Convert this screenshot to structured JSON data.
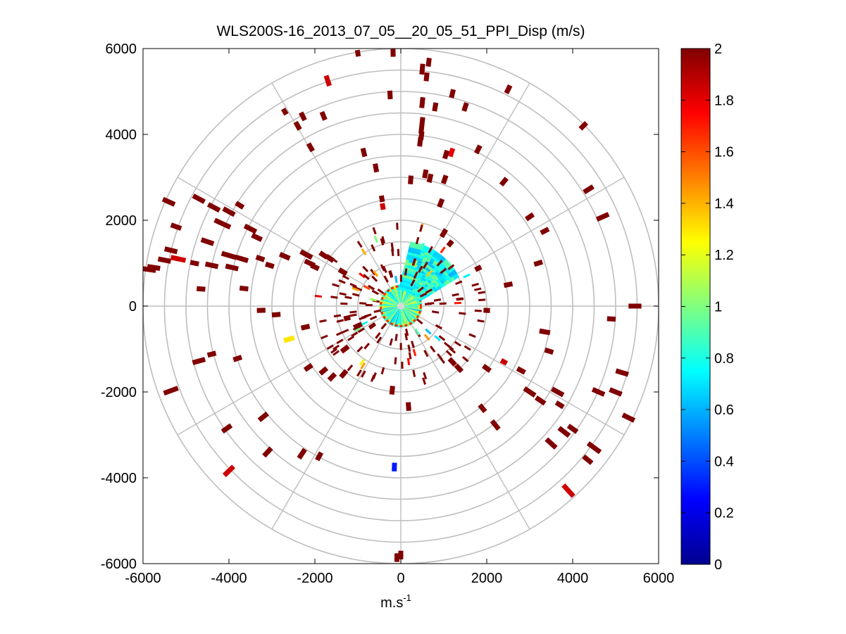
{
  "chart_data": {
    "type": "heatmap",
    "subtype": "polar-ppi-scan",
    "title": "WLS200S-16_2013_07_05__20_05_51_PPI_Disp (m/s)",
    "xlabel": "m.s",
    "xlabel_superscript": "-1",
    "ylabel": "",
    "xlim": [
      -6000,
      6000
    ],
    "ylim": [
      -6000,
      6000
    ],
    "xticks": [
      -6000,
      -4000,
      -2000,
      0,
      2000,
      4000,
      6000
    ],
    "yticks": [
      -6000,
      -4000,
      -2000,
      0,
      2000,
      4000,
      6000
    ],
    "polar_grid": {
      "rings": [
        1000,
        1500,
        2000,
        2500,
        3000,
        3500,
        4000,
        4500,
        5000,
        5500,
        6000
      ],
      "spokes_deg": [
        0,
        30,
        60,
        90,
        120,
        150,
        180,
        210,
        240,
        270,
        300,
        330
      ],
      "color": "#bebebe"
    },
    "colorbar": {
      "min": 0,
      "max": 2,
      "ticks": [
        0,
        0.2,
        0.4,
        0.6,
        0.8,
        1,
        1.2,
        1.4,
        1.6,
        1.8,
        2
      ],
      "colormap": "jet",
      "stops": [
        "#00008f",
        "#0000ff",
        "#0080ff",
        "#00ffff",
        "#80ff80",
        "#ffff00",
        "#ff8000",
        "#ff0000",
        "#800000"
      ]
    },
    "near_field_region": {
      "center": [
        0,
        0
      ],
      "radius": 500,
      "value_range": [
        0.6,
        1.2
      ]
    },
    "echo_region": {
      "az_from": 30,
      "az_to": 75,
      "r_from": 400,
      "r_to": 1450,
      "value_range": [
        0.6,
        1.0
      ]
    },
    "segments": [
      [
        -1000,
        5890,
        150,
        2
      ],
      [
        -180,
        5900,
        180,
        2
      ],
      [
        650,
        5680,
        200,
        2
      ],
      [
        500,
        5520,
        250,
        2
      ],
      [
        600,
        5340,
        200,
        2
      ],
      [
        1200,
        4950,
        200,
        2
      ],
      [
        2500,
        5050,
        200,
        2
      ],
      [
        4250,
        4200,
        200,
        2
      ],
      [
        -1700,
        5250,
        250,
        1.85
      ],
      [
        -250,
        4920,
        200,
        2
      ],
      [
        500,
        4740,
        250,
        2
      ],
      [
        800,
        4640,
        200,
        2
      ],
      [
        1500,
        4640,
        200,
        2
      ],
      [
        -2700,
        4530,
        150,
        2
      ],
      [
        -2280,
        4420,
        200,
        2
      ],
      [
        -1800,
        4430,
        200,
        2
      ],
      [
        -2400,
        4200,
        200,
        2
      ],
      [
        500,
        4300,
        200,
        2
      ],
      [
        480,
        4120,
        200,
        2
      ],
      [
        480,
        3970,
        200,
        2
      ],
      [
        450,
        3830,
        220,
        2
      ],
      [
        -2100,
        3700,
        200,
        2
      ],
      [
        -860,
        3580,
        200,
        2
      ],
      [
        1800,
        3650,
        200,
        2
      ],
      [
        -580,
        3220,
        200,
        2
      ],
      [
        1180,
        3580,
        200,
        1.8
      ],
      [
        1050,
        3530,
        200,
        2
      ],
      [
        570,
        3080,
        200,
        2
      ],
      [
        230,
        2940,
        200,
        2
      ],
      [
        680,
        2980,
        200,
        2
      ],
      [
        1020,
        2950,
        200,
        2
      ],
      [
        2400,
        2900,
        200,
        2
      ],
      [
        4370,
        2720,
        250,
        2
      ],
      [
        -440,
        2500,
        150,
        2
      ],
      [
        -420,
        2320,
        150,
        1.85
      ],
      [
        930,
        2400,
        200,
        2
      ],
      [
        -5400,
        2430,
        300,
        2
      ],
      [
        -4700,
        2500,
        300,
        2
      ],
      [
        -4350,
        2300,
        300,
        2
      ],
      [
        -4000,
        2200,
        300,
        2
      ],
      [
        -3750,
        2350,
        200,
        2
      ],
      [
        -4150,
        1920,
        400,
        2
      ],
      [
        -3500,
        1800,
        300,
        2
      ],
      [
        -3350,
        1600,
        250,
        2
      ],
      [
        -5230,
        1850,
        250,
        2
      ],
      [
        -5350,
        1300,
        300,
        2
      ],
      [
        -5500,
        1070,
        300,
        2
      ],
      [
        -5750,
        900,
        300,
        2
      ],
      [
        -5850,
        850,
        300,
        2
      ],
      [
        -5180,
        1100,
        350,
        1.85
      ],
      [
        -4500,
        1500,
        300,
        2
      ],
      [
        -4000,
        1180,
        350,
        2
      ],
      [
        -3700,
        1100,
        300,
        2
      ],
      [
        -4400,
        950,
        300,
        2
      ],
      [
        -3930,
        900,
        300,
        2
      ],
      [
        -4800,
        1000,
        200,
        2
      ],
      [
        -3270,
        1110,
        200,
        2
      ],
      [
        -3050,
        950,
        200,
        2
      ],
      [
        -2700,
        1160,
        250,
        2
      ],
      [
        -2200,
        1200,
        300,
        2
      ],
      [
        -2120,
        1000,
        250,
        2
      ],
      [
        -2000,
        910,
        200,
        2
      ],
      [
        -1800,
        1190,
        200,
        2
      ],
      [
        -1650,
        1110,
        200,
        2
      ],
      [
        -1350,
        800,
        200,
        2
      ],
      [
        -4650,
        400,
        200,
        2
      ],
      [
        -3650,
        410,
        200,
        2
      ],
      [
        -3250,
        -100,
        200,
        2
      ],
      [
        -2900,
        -200,
        200,
        2
      ],
      [
        -2600,
        -770,
        250,
        1.3
      ],
      [
        -2220,
        -490,
        200,
        2
      ],
      [
        -1250,
        -280,
        150,
        2
      ],
      [
        -1000,
        -460,
        200,
        2
      ],
      [
        -1600,
        -1650,
        200,
        2
      ],
      [
        -1330,
        -1580,
        200,
        2
      ],
      [
        -1800,
        -1510,
        200,
        2
      ],
      [
        -2150,
        -1430,
        200,
        2
      ],
      [
        -3800,
        -1220,
        200,
        2
      ],
      [
        -4700,
        -1280,
        300,
        2
      ],
      [
        -4400,
        -1120,
        200,
        2
      ],
      [
        -5350,
        -1970,
        350,
        2
      ],
      [
        -4050,
        -2850,
        250,
        2
      ],
      [
        -3200,
        -2580,
        250,
        2
      ],
      [
        -3100,
        -3400,
        250,
        2
      ],
      [
        -2300,
        -3440,
        250,
        2
      ],
      [
        -1900,
        -3500,
        200,
        2
      ],
      [
        -4000,
        -3840,
        300,
        1.85
      ],
      [
        -1300,
        -1000,
        200,
        2
      ],
      [
        -150,
        -3750,
        200,
        0.3
      ],
      [
        180,
        -2340,
        200,
        2
      ],
      [
        -200,
        -1960,
        200,
        2
      ],
      [
        1350,
        -1450,
        200,
        2
      ],
      [
        1200,
        -1300,
        200,
        2
      ],
      [
        2400,
        -1300,
        150,
        1.85
      ],
      [
        2000,
        -1450,
        200,
        2
      ],
      [
        2800,
        -1500,
        200,
        2
      ],
      [
        1900,
        -2380,
        200,
        2
      ],
      [
        2200,
        -2770,
        250,
        2
      ],
      [
        3000,
        -2000,
        300,
        2
      ],
      [
        3250,
        -2200,
        250,
        2
      ],
      [
        3650,
        -2000,
        300,
        2
      ],
      [
        3700,
        -2300,
        200,
        2
      ],
      [
        3500,
        -3200,
        300,
        2
      ],
      [
        3800,
        -2930,
        300,
        2
      ],
      [
        4000,
        -2860,
        250,
        2
      ],
      [
        4500,
        -3300,
        350,
        2
      ],
      [
        4350,
        -3580,
        250,
        2
      ],
      [
        3900,
        -4300,
        350,
        1.85
      ],
      [
        4600,
        -2000,
        300,
        2
      ],
      [
        5150,
        -1550,
        300,
        2
      ],
      [
        5000,
        -2000,
        300,
        2
      ],
      [
        5300,
        -2600,
        300,
        2
      ],
      [
        3350,
        -600,
        250,
        2
      ],
      [
        3450,
        -1050,
        200,
        2
      ],
      [
        4900,
        -300,
        200,
        2
      ],
      [
        5450,
        0,
        300,
        2
      ],
      [
        2000,
        -100,
        150,
        2
      ],
      [
        2500,
        500,
        200,
        2
      ],
      [
        3200,
        1000,
        200,
        2
      ],
      [
        3350,
        1750,
        200,
        2
      ],
      [
        3000,
        2080,
        200,
        2
      ],
      [
        4700,
        2080,
        300,
        2
      ],
      [
        1800,
        880,
        150,
        2
      ],
      [
        1000,
        1700,
        200,
        2
      ],
      [
        1150,
        1460,
        150,
        2
      ],
      [
        -90,
        -5860,
        200,
        2
      ],
      [
        0,
        -5800,
        200,
        2
      ]
    ],
    "near_field_ticks_count": 160
  }
}
